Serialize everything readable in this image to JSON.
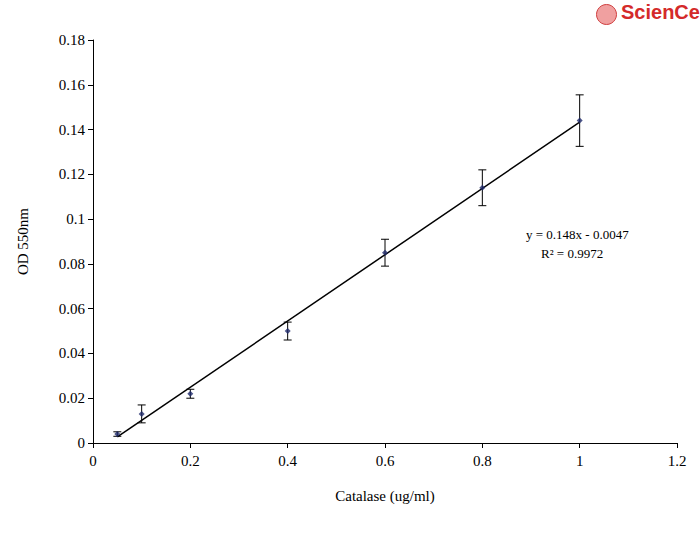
{
  "chart_data": {
    "type": "scatter",
    "logo_text": "ScienCell",
    "x_label": "Catalase (ug/ml)",
    "y_label": "OD 550nm",
    "annotations": [
      "y = 0.148x - 0.0047",
      "R² = 0.9972"
    ],
    "x": [
      0.05,
      0.1,
      0.2,
      0.4,
      0.6,
      0.8,
      1
    ],
    "values": [
      0.004,
      0.013,
      0.022,
      0.05,
      0.085,
      0.114,
      0.144
    ],
    "errors": [
      0.001,
      0.004,
      0.002,
      0.004,
      0.006,
      0.008,
      0.0115
    ],
    "color": "#1f2a6b",
    "marker": "diamond",
    "fit": {
      "x": [
        0.05,
        1
      ],
      "values": [
        0.0027,
        0.1433
      ],
      "color": "#000000"
    },
    "xlim": [
      0,
      1.2
    ],
    "xticks": [
      0,
      0.2,
      0.4,
      0.6,
      0.8,
      1,
      1.2
    ],
    "ylim": [
      0,
      0.18
    ],
    "yticks": [
      0,
      0.02,
      0.04,
      0.06,
      0.08,
      0.1,
      0.12,
      0.14,
      0.16,
      0.18
    ],
    "grid": false
  }
}
